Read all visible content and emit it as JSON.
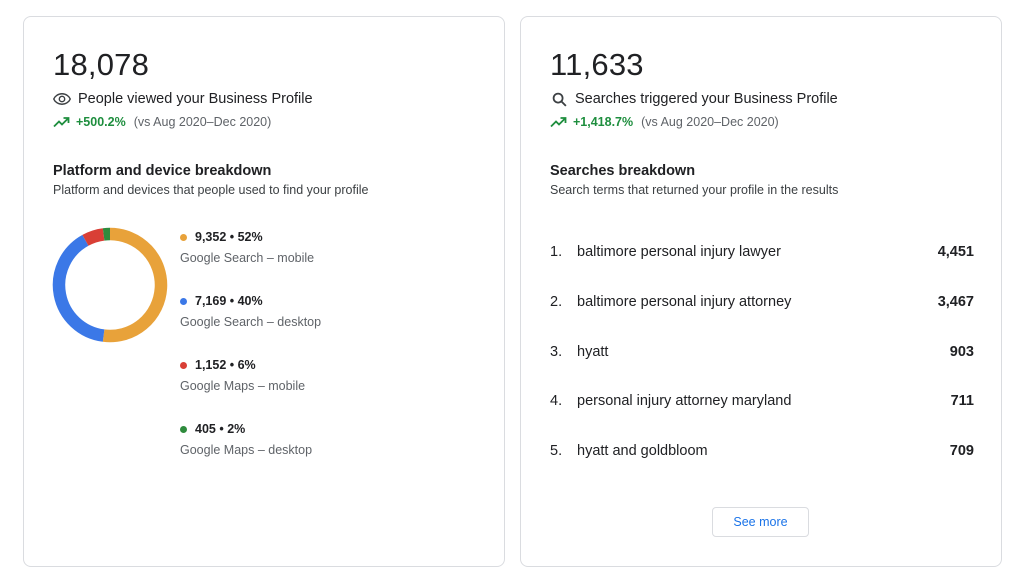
{
  "views_card": {
    "total": "18,078",
    "metric_label": "People viewed your Business Profile",
    "metric_icon": "eye-icon",
    "trend_value": "+500.2%",
    "trend_compare": "(vs Aug 2020–Dec 2020)",
    "breakdown_title": "Platform and device breakdown",
    "breakdown_subtitle": "Platform and devices that people used to find your profile",
    "segments": [
      {
        "value": "9,352",
        "percent": "52%",
        "share": 52,
        "label": "Google Search – mobile",
        "color": "#e8a23a"
      },
      {
        "value": "7,169",
        "percent": "40%",
        "share": 40,
        "label": "Google Search – desktop",
        "color": "#3b78e7"
      },
      {
        "value": "1,152",
        "percent": "6%",
        "share": 6,
        "label": "Google Maps – mobile",
        "color": "#d93f36"
      },
      {
        "value": "405",
        "percent": "2%",
        "share": 2,
        "label": "Google Maps – desktop",
        "color": "#2e8b3d"
      }
    ]
  },
  "searches_card": {
    "total": "11,633",
    "metric_label": "Searches triggered your Business Profile",
    "metric_icon": "search-icon",
    "trend_value": "+1,418.7%",
    "trend_compare": "(vs Aug 2020–Dec 2020)",
    "breakdown_title": "Searches breakdown",
    "breakdown_subtitle": "Search terms that returned your profile in the results",
    "rows": [
      {
        "rank": "1.",
        "term": "baltimore personal injury lawyer",
        "count": "4,451"
      },
      {
        "rank": "2.",
        "term": "baltimore personal injury attorney",
        "count": "3,467"
      },
      {
        "rank": "3.",
        "term": "hyatt",
        "count": "903"
      },
      {
        "rank": "4.",
        "term": "personal injury attorney maryland",
        "count": "711"
      },
      {
        "rank": "5.",
        "term": "hyatt and goldbloom",
        "count": "709"
      }
    ],
    "see_more_label": "See more"
  },
  "colors": {
    "trend_green": "#1e8e3e",
    "link_blue": "#1a73e8",
    "border": "#dadce0"
  }
}
